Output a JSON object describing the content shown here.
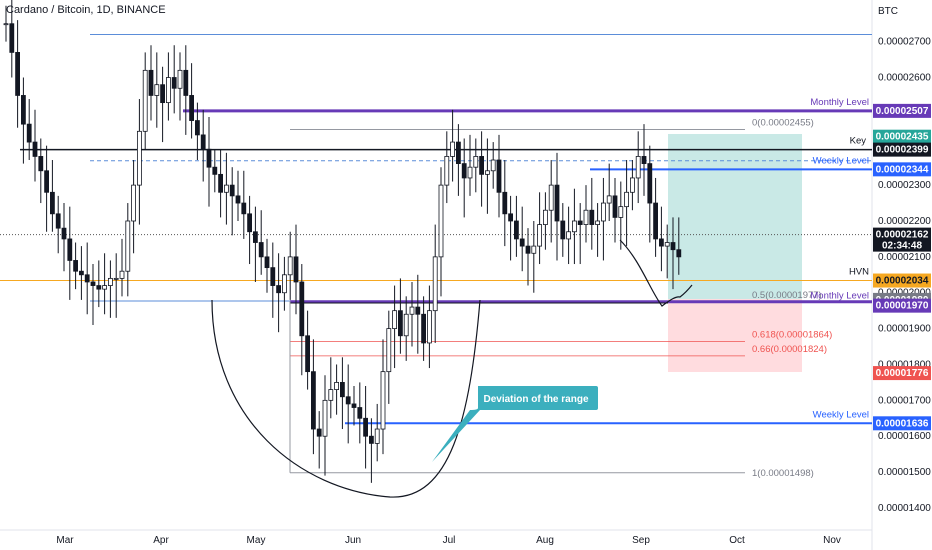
{
  "title": "Cardano / Bitcoin, 1D, BINANCE",
  "currency": "BTC",
  "chart_data": {
    "type": "candlestick",
    "y_range": [
      1.35e-05,
      2.81e-05
    ],
    "x_months": [
      "Mar",
      "Apr",
      "May",
      "Jun",
      "Jul",
      "Aug",
      "Sep",
      "Oct",
      "Nov"
    ],
    "y_ticks": [
      "0.00002700",
      "0.00002600",
      "0.00002300",
      "0.00002200",
      "0.00002100",
      "0.00002000",
      "0.00001900",
      "0.00001800",
      "0.00001700",
      "0.00001600",
      "0.00001500",
      "0.00001400"
    ],
    "close_path_y": [
      2.75,
      2.67,
      2.55,
      2.47,
      2.42,
      2.38,
      2.34,
      2.28,
      2.22,
      2.18,
      2.15,
      2.09,
      2.06,
      2.05,
      2.03,
      2.02,
      2.01,
      2.02,
      2.04,
      2.04,
      2.06,
      2.2,
      2.3,
      2.45,
      2.62,
      2.55,
      2.58,
      2.53,
      2.6,
      2.57,
      2.62,
      2.55,
      2.48,
      2.44,
      2.4,
      2.35,
      2.33,
      2.28,
      2.3,
      2.27,
      2.25,
      2.22,
      2.17,
      2.14,
      2.1,
      2.07,
      2.02,
      2.0,
      2.05,
      2.1,
      2.03,
      1.88,
      1.78,
      1.62,
      1.6,
      1.7,
      1.73,
      1.75,
      1.71,
      1.69,
      1.68,
      1.65,
      1.6,
      1.58,
      1.62,
      1.78,
      1.9,
      1.95,
      1.88,
      1.94,
      1.96,
      1.94,
      1.86,
      1.95,
      2.1,
      2.3,
      2.38,
      2.42,
      2.36,
      2.32,
      2.35,
      2.38,
      2.33,
      2.34,
      2.37,
      2.28,
      2.22,
      2.2,
      2.15,
      2.13,
      2.11,
      2.13,
      2.19,
      2.23,
      2.3,
      2.2,
      2.15,
      2.17,
      2.2,
      2.19,
      2.23,
      2.19,
      2.2,
      2.25,
      2.27,
      2.21,
      2.24,
      2.28,
      2.32,
      2.38,
      2.36,
      2.25,
      2.15,
      2.13,
      2.14,
      2.12,
      2.1
    ]
  },
  "levels": {
    "top": {
      "price": 2.72e-05
    },
    "monthly_top": {
      "price": 2.507e-05,
      "label": "Monthly Level",
      "tag": "0.00002507"
    },
    "fib0": {
      "price": 2.455e-05,
      "label": "0(0.00002455)"
    },
    "key_ask": {
      "tag": "0.00002435"
    },
    "key": {
      "price": 2.399e-05,
      "label": "Key",
      "tag": "0.00002399"
    },
    "weekly_dashed": {
      "price": 2.368e-05,
      "label": "Weekly Level"
    },
    "weekly_mid": {
      "price": 2.344e-05,
      "tag": "0.00002344"
    },
    "current": {
      "price": 2.162e-05,
      "tag": "0.00002162",
      "countdown": "02:34:48"
    },
    "hvn": {
      "price": 2.034e-05,
      "label": "HVN",
      "tag": "0.00002034"
    },
    "fib05": {
      "price": 1.977e-05,
      "label": "0.5(0.00001977)"
    },
    "monthly_low": {
      "price": 1.975e-05,
      "label": "Monthly Level",
      "tag": "0.00001980",
      "tag2": "0.00001970"
    },
    "fib618": {
      "price": 1.864e-05,
      "label": "0.618(0.00001864)"
    },
    "fib66": {
      "price": 1.824e-05,
      "label": "0.66(0.00001824)"
    },
    "stop": {
      "tag": "0.00001776"
    },
    "weekly_low": {
      "price": 1.636e-05,
      "label": "Weekly Level",
      "tag": "0.00001636"
    },
    "fib1": {
      "price": 1.498e-05,
      "label": "1(0.00001498)"
    }
  },
  "annotation": {
    "text": "Deviation of the range"
  },
  "colors": {
    "bull": "#26a69a",
    "bear": "#ef5350",
    "candle": "#131722",
    "blue": "#2962ff",
    "purple": "#673ab7",
    "orange": "#f6a821",
    "teal_box": "#b2dfdb",
    "red_box": "#ffcdd2",
    "callout": "#3bafbe"
  }
}
